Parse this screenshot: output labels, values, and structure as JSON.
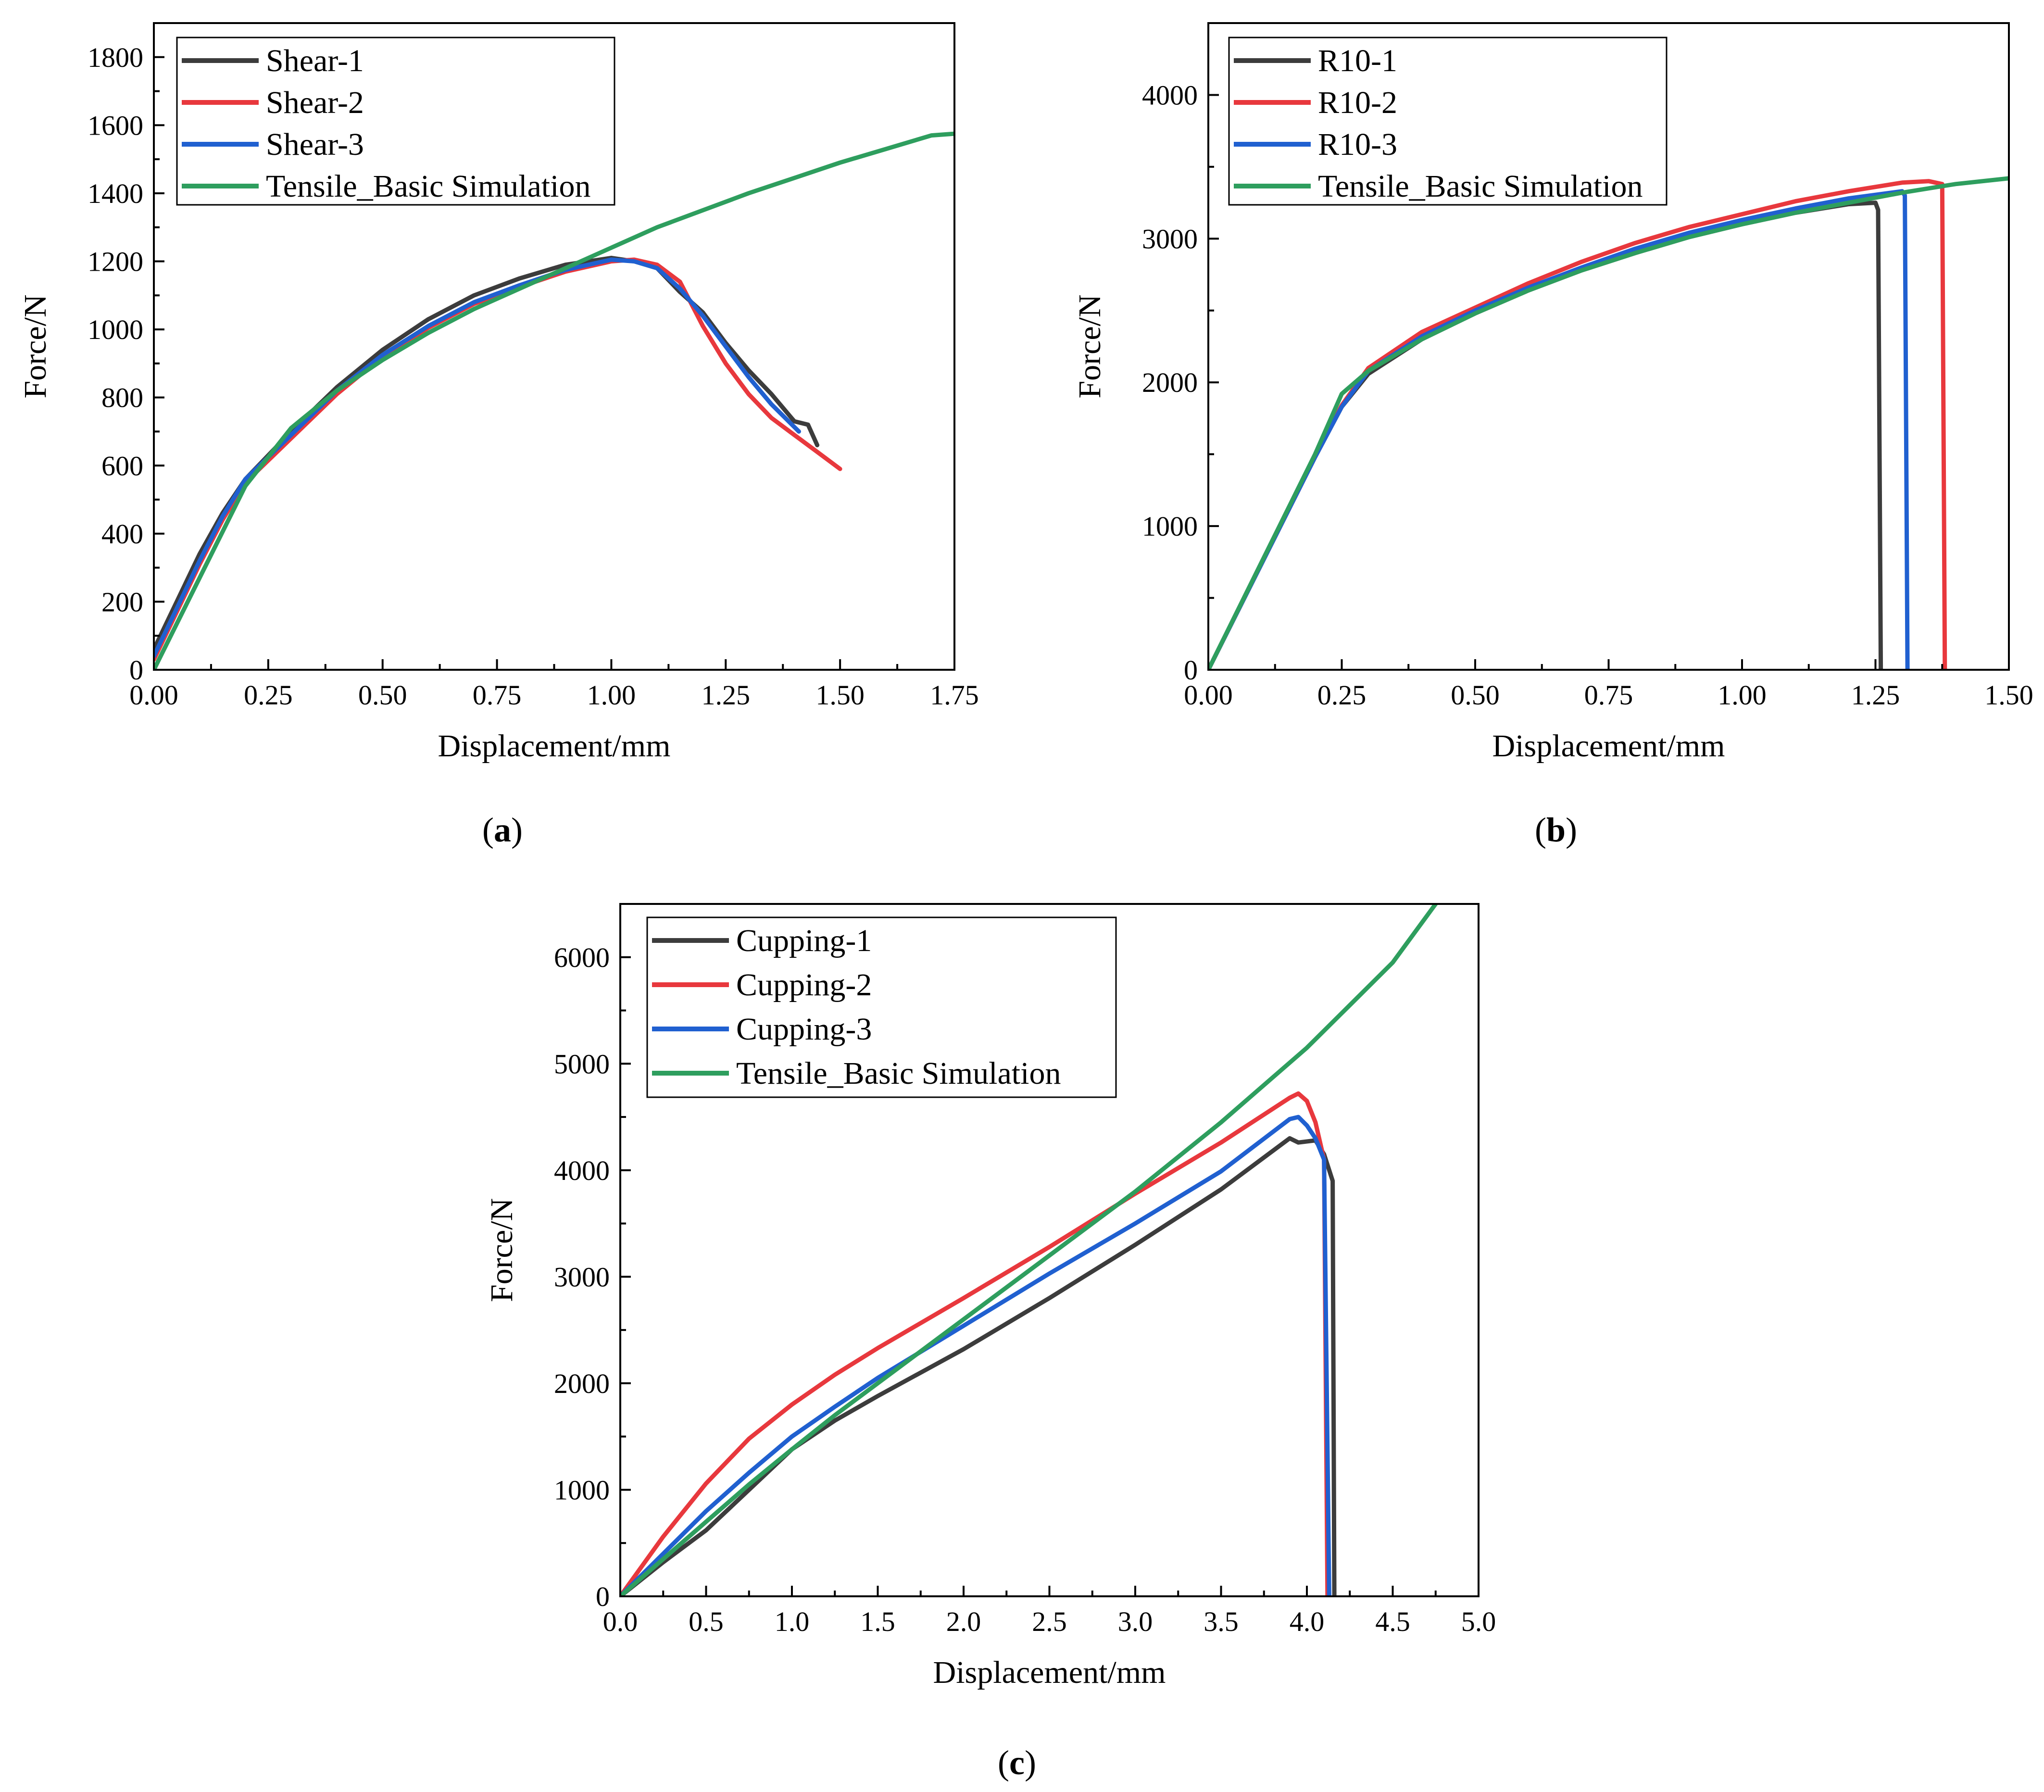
{
  "colors": {
    "black": "#3c3c3c",
    "red": "#e8383d",
    "blue": "#2060d0",
    "green": "#2e9e5e"
  },
  "captions": [
    "(a)",
    "(b)",
    "(c)"
  ],
  "chart_data": [
    {
      "type": "line",
      "id": "a",
      "caption_letter": "a",
      "xlabel": "Displacement/mm",
      "ylabel": "Force/N",
      "xlim": [
        0,
        1.75
      ],
      "ylim": [
        0,
        1900
      ],
      "xticks": [
        0,
        0.25,
        0.5,
        0.75,
        1.0,
        1.25,
        1.5,
        1.75
      ],
      "xtick_labels": [
        "0.00",
        "0.25",
        "0.50",
        "0.75",
        "1.00",
        "1.25",
        "1.50",
        "1.75"
      ],
      "yticks": [
        0,
        200,
        400,
        600,
        800,
        1000,
        1200,
        1400,
        1600,
        1800
      ],
      "ytick_labels": [
        "0",
        "200",
        "400",
        "600",
        "800",
        "1000",
        "1200",
        "1400",
        "1600",
        "1800"
      ],
      "legend_position": "top-left",
      "series": [
        {
          "name": "Shear-1",
          "color": "black",
          "x": [
            0,
            0.05,
            0.1,
            0.15,
            0.2,
            0.3,
            0.4,
            0.5,
            0.6,
            0.7,
            0.8,
            0.9,
            1.0,
            1.05,
            1.1,
            1.15,
            1.2,
            1.25,
            1.3,
            1.35,
            1.4,
            1.43,
            1.45
          ],
          "y": [
            60,
            200,
            340,
            460,
            560,
            700,
            830,
            940,
            1030,
            1100,
            1150,
            1190,
            1210,
            1200,
            1180,
            1110,
            1050,
            960,
            880,
            810,
            730,
            720,
            660
          ]
        },
        {
          "name": "Shear-2",
          "color": "red",
          "x": [
            0,
            0.05,
            0.1,
            0.15,
            0.2,
            0.3,
            0.4,
            0.5,
            0.6,
            0.7,
            0.8,
            0.9,
            1.0,
            1.05,
            1.1,
            1.15,
            1.2,
            1.25,
            1.3,
            1.35,
            1.4,
            1.45,
            1.5
          ],
          "y": [
            30,
            170,
            310,
            440,
            550,
            680,
            810,
            920,
            1005,
            1075,
            1125,
            1170,
            1200,
            1205,
            1190,
            1140,
            1010,
            900,
            810,
            740,
            690,
            640,
            590
          ]
        },
        {
          "name": "Shear-3",
          "color": "blue",
          "x": [
            0,
            0.05,
            0.1,
            0.15,
            0.2,
            0.3,
            0.4,
            0.5,
            0.6,
            0.7,
            0.8,
            0.9,
            1.0,
            1.05,
            1.1,
            1.15,
            1.2,
            1.25,
            1.3,
            1.35,
            1.41
          ],
          "y": [
            40,
            180,
            320,
            450,
            560,
            690,
            820,
            925,
            1010,
            1080,
            1130,
            1175,
            1205,
            1200,
            1180,
            1120,
            1040,
            950,
            860,
            780,
            700
          ]
        },
        {
          "name": "Tensile_Basic Simulation",
          "color": "green",
          "x": [
            0,
            0.1,
            0.2,
            0.3,
            0.4,
            0.5,
            0.6,
            0.7,
            0.8,
            0.9,
            1.0,
            1.1,
            1.2,
            1.3,
            1.4,
            1.5,
            1.6,
            1.7,
            1.75
          ],
          "y": [
            0,
            270,
            540,
            710,
            820,
            910,
            990,
            1060,
            1120,
            1180,
            1240,
            1300,
            1350,
            1400,
            1445,
            1490,
            1530,
            1570,
            1575
          ]
        }
      ]
    },
    {
      "type": "line",
      "id": "b",
      "caption_letter": "b",
      "xlabel": "Displacement/mm",
      "ylabel": "Force/N",
      "xlim": [
        0,
        1.5
      ],
      "ylim": [
        0,
        4500
      ],
      "xticks": [
        0,
        0.25,
        0.5,
        0.75,
        1.0,
        1.25,
        1.5
      ],
      "xtick_labels": [
        "0.00",
        "0.25",
        "0.50",
        "0.75",
        "1.00",
        "1.25",
        "1.50"
      ],
      "yticks": [
        0,
        1000,
        2000,
        3000,
        4000
      ],
      "ytick_labels": [
        "0",
        "1000",
        "2000",
        "3000",
        "4000"
      ],
      "legend_position": "top-left",
      "series": [
        {
          "name": "R10-1",
          "color": "black",
          "x": [
            0,
            0.1,
            0.2,
            0.25,
            0.3,
            0.4,
            0.5,
            0.6,
            0.7,
            0.8,
            0.9,
            1.0,
            1.1,
            1.2,
            1.25,
            1.255,
            1.26
          ],
          "y": [
            0,
            740,
            1480,
            1830,
            2060,
            2300,
            2480,
            2640,
            2780,
            2900,
            3010,
            3100,
            3180,
            3240,
            3250,
            3200,
            0
          ]
        },
        {
          "name": "R10-2",
          "color": "red",
          "x": [
            0,
            0.1,
            0.2,
            0.25,
            0.3,
            0.4,
            0.5,
            0.6,
            0.7,
            0.8,
            0.9,
            1.0,
            1.1,
            1.2,
            1.3,
            1.35,
            1.375,
            1.38
          ],
          "y": [
            0,
            740,
            1480,
            1840,
            2100,
            2350,
            2520,
            2690,
            2840,
            2970,
            3080,
            3170,
            3260,
            3330,
            3390,
            3400,
            3380,
            0
          ]
        },
        {
          "name": "R10-3",
          "color": "blue",
          "x": [
            0,
            0.1,
            0.2,
            0.25,
            0.3,
            0.4,
            0.5,
            0.6,
            0.7,
            0.8,
            0.9,
            1.0,
            1.1,
            1.2,
            1.3,
            1.305,
            1.31
          ],
          "y": [
            0,
            740,
            1480,
            1830,
            2080,
            2320,
            2500,
            2660,
            2800,
            2930,
            3040,
            3130,
            3210,
            3280,
            3330,
            3300,
            0
          ]
        },
        {
          "name": "Tensile_Basic Simulation",
          "color": "green",
          "x": [
            0,
            0.1,
            0.2,
            0.25,
            0.3,
            0.4,
            0.5,
            0.6,
            0.7,
            0.8,
            0.9,
            1.0,
            1.1,
            1.2,
            1.3,
            1.4,
            1.5
          ],
          "y": [
            0,
            750,
            1500,
            1920,
            2080,
            2300,
            2480,
            2640,
            2780,
            2900,
            3010,
            3100,
            3180,
            3250,
            3320,
            3380,
            3420
          ]
        }
      ]
    },
    {
      "type": "line",
      "id": "c",
      "caption_letter": "c",
      "xlabel": "Displacement/mm",
      "ylabel": "Force/N",
      "xlim": [
        0,
        5.0
      ],
      "ylim": [
        0,
        6500
      ],
      "xticks": [
        0,
        0.5,
        1.0,
        1.5,
        2.0,
        2.5,
        3.0,
        3.5,
        4.0,
        4.5,
        5.0
      ],
      "xtick_labels": [
        "0.0",
        "0.5",
        "1.0",
        "1.5",
        "2.0",
        "2.5",
        "3.0",
        "3.5",
        "4.0",
        "4.5",
        "5.0"
      ],
      "yticks": [
        0,
        1000,
        2000,
        3000,
        4000,
        5000,
        6000
      ],
      "ytick_labels": [
        "0",
        "1000",
        "2000",
        "3000",
        "4000",
        "5000",
        "6000"
      ],
      "legend_position": "top-left",
      "series": [
        {
          "name": "Cupping-1",
          "color": "black",
          "x": [
            0,
            0.25,
            0.5,
            0.75,
            1.0,
            1.25,
            1.5,
            2.0,
            2.5,
            3.0,
            3.5,
            3.9,
            3.95,
            4.05,
            4.1,
            4.15,
            4.16
          ],
          "y": [
            0,
            320,
            620,
            1000,
            1380,
            1650,
            1880,
            2320,
            2800,
            3300,
            3820,
            4300,
            4260,
            4280,
            4150,
            3900,
            0
          ]
        },
        {
          "name": "Cupping-2",
          "color": "red",
          "x": [
            0,
            0.25,
            0.5,
            0.75,
            1.0,
            1.25,
            1.5,
            2.0,
            2.5,
            3.0,
            3.5,
            3.9,
            3.95,
            4.0,
            4.05,
            4.1,
            4.12
          ],
          "y": [
            0,
            560,
            1060,
            1480,
            1800,
            2080,
            2330,
            2800,
            3280,
            3780,
            4260,
            4680,
            4720,
            4650,
            4450,
            4100,
            0
          ]
        },
        {
          "name": "Cupping-3",
          "color": "blue",
          "x": [
            0,
            0.25,
            0.5,
            0.75,
            1.0,
            1.25,
            1.5,
            2.0,
            2.5,
            3.0,
            3.5,
            3.9,
            3.95,
            4.0,
            4.05,
            4.1,
            4.13
          ],
          "y": [
            0,
            400,
            800,
            1160,
            1500,
            1780,
            2050,
            2540,
            3030,
            3500,
            3990,
            4480,
            4500,
            4420,
            4300,
            4100,
            0
          ]
        },
        {
          "name": "Tensile_Basic Simulation",
          "color": "green",
          "x": [
            0,
            0.25,
            0.5,
            0.75,
            1.0,
            1.25,
            1.5,
            2.0,
            2.5,
            3.0,
            3.5,
            4.0,
            4.25,
            4.5,
            4.75
          ],
          "y": [
            0,
            350,
            700,
            1050,
            1380,
            1700,
            2000,
            2600,
            3200,
            3800,
            4450,
            5150,
            5550,
            5950,
            6500
          ]
        }
      ]
    }
  ]
}
